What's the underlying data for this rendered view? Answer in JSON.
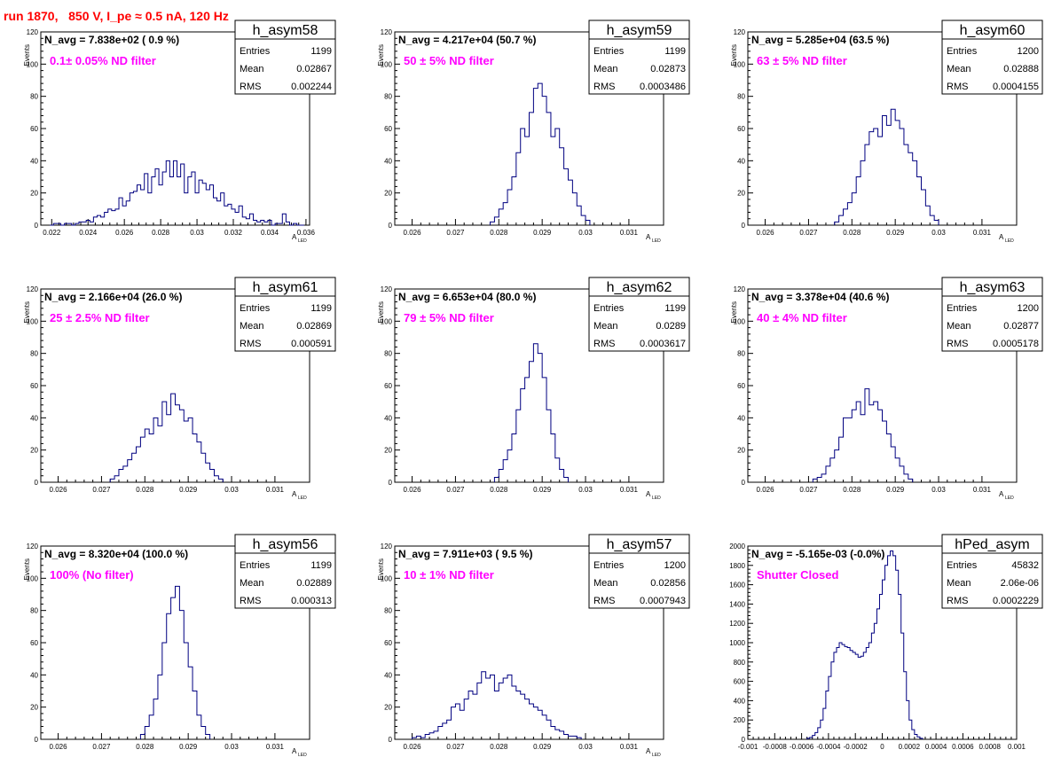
{
  "page": {
    "title": "run 1870,   850 V, I_pe ≈ 0.5 nA, 120 Hz",
    "colors": {
      "title": "#ff0000",
      "filter_text": "#ff00ff",
      "hist_line": "#000080",
      "axis": "#000000"
    }
  },
  "chart_data": [
    {
      "type": "histogram",
      "id": "h_asym58",
      "stats": {
        "name": "h_asym58",
        "rows": [
          [
            "Entries",
            "1199"
          ],
          [
            "Mean",
            "0.02867"
          ],
          [
            "RMS",
            "0.002244"
          ]
        ]
      },
      "navg": "N_avg = 7.838e+02 ( 0.9 %)",
      "filter": "0.1± 0.05% ND filter",
      "ylabel": "Events",
      "xlabel": "A",
      "xlabel_sub": "LED",
      "xlim": [
        0.0214,
        0.0362
      ],
      "ylim": [
        0,
        120
      ],
      "xticks": [
        0.022,
        0.024,
        0.026,
        0.028,
        0.03,
        0.032,
        0.034,
        0.036
      ],
      "xtick_labels": [
        "0.022",
        "0.024",
        "0.026",
        "0.028",
        "0.03",
        "0.032",
        "0.034",
        "0.036"
      ],
      "yticks": [
        0,
        20,
        40,
        60,
        80,
        100,
        120
      ],
      "xmin": 0.0219,
      "binw": 0.0002,
      "values": [
        0,
        1,
        1,
        0,
        1,
        1,
        0,
        1,
        2,
        2,
        3,
        2,
        5,
        6,
        5,
        8,
        10,
        9,
        10,
        17,
        12,
        15,
        20,
        21,
        25,
        22,
        32,
        20,
        30,
        35,
        25,
        33,
        40,
        30,
        40,
        30,
        38,
        20,
        30,
        33,
        20,
        28,
        26,
        22,
        25,
        17,
        15,
        20,
        12,
        13,
        10,
        8,
        12,
        5,
        4,
        7,
        3,
        2,
        3,
        2,
        3,
        0,
        1,
        1,
        7,
        2,
        0,
        1,
        0,
        0
      ]
    },
    {
      "type": "histogram",
      "id": "h_asym59",
      "stats": {
        "name": "h_asym59",
        "rows": [
          [
            "Entries",
            "1199"
          ],
          [
            "Mean",
            "0.02873"
          ],
          [
            "RMS",
            "0.0003486"
          ]
        ]
      },
      "navg": "N_avg = 4.217e+04 (50.7 %)",
      "filter": "50 ± 5% ND filter",
      "ylabel": "Events",
      "xlabel": "A",
      "xlabel_sub": "LED",
      "xlim": [
        0.0256,
        0.0318
      ],
      "ylim": [
        0,
        120
      ],
      "xticks": [
        0.026,
        0.027,
        0.028,
        0.029,
        0.03,
        0.031
      ],
      "xtick_labels": [
        "0.026",
        "0.027",
        "0.028",
        "0.029",
        "0.03",
        "0.031"
      ],
      "yticks": [
        0,
        20,
        40,
        60,
        80,
        100,
        120
      ],
      "xmin": 0.0278,
      "binw": 0.0001,
      "values": [
        2,
        5,
        10,
        14,
        22,
        30,
        45,
        60,
        55,
        70,
        85,
        88,
        80,
        70,
        55,
        60,
        48,
        35,
        28,
        20,
        12,
        6,
        3
      ]
    },
    {
      "type": "histogram",
      "id": "h_asym60",
      "stats": {
        "name": "h_asym60",
        "rows": [
          [
            "Entries",
            "1200"
          ],
          [
            "Mean",
            "0.02888"
          ],
          [
            "RMS",
            "0.0004155"
          ]
        ]
      },
      "navg": "N_avg = 5.285e+04 (63.5 %)",
      "filter": "63 ± 5% ND filter",
      "ylabel": "Events",
      "xlabel": "A",
      "xlabel_sub": "LED",
      "xlim": [
        0.0256,
        0.0318
      ],
      "ylim": [
        0,
        120
      ],
      "xticks": [
        0.026,
        0.027,
        0.028,
        0.029,
        0.03,
        0.031
      ],
      "xtick_labels": [
        "0.026",
        "0.027",
        "0.028",
        "0.029",
        "0.03",
        "0.031"
      ],
      "yticks": [
        0,
        20,
        40,
        60,
        80,
        100,
        120
      ],
      "xmin": 0.0276,
      "binw": 0.0001,
      "values": [
        2,
        6,
        10,
        14,
        20,
        30,
        40,
        50,
        58,
        60,
        55,
        68,
        62,
        72,
        65,
        60,
        50,
        45,
        40,
        30,
        22,
        12,
        6,
        3
      ]
    },
    {
      "type": "histogram",
      "id": "h_asym61",
      "stats": {
        "name": "h_asym61",
        "rows": [
          [
            "Entries",
            "1199"
          ],
          [
            "Mean",
            "0.02869"
          ],
          [
            "RMS",
            "0.000591"
          ]
        ]
      },
      "navg": "N_avg = 2.166e+04 (26.0 %)",
      "filter": "25 ± 2.5% ND filter",
      "ylabel": "Events",
      "xlabel": "A",
      "xlabel_sub": "LED",
      "xlim": [
        0.0256,
        0.0318
      ],
      "ylim": [
        0,
        120
      ],
      "xticks": [
        0.026,
        0.027,
        0.028,
        0.029,
        0.03,
        0.031
      ],
      "xtick_labels": [
        "0.026",
        "0.027",
        "0.028",
        "0.029",
        "0.03",
        "0.031"
      ],
      "yticks": [
        0,
        20,
        40,
        60,
        80,
        100,
        120
      ],
      "xmin": 0.0272,
      "binw": 0.0001,
      "values": [
        2,
        4,
        8,
        10,
        14,
        18,
        22,
        28,
        33,
        30,
        40,
        35,
        50,
        42,
        55,
        48,
        45,
        38,
        40,
        30,
        25,
        18,
        12,
        8,
        4,
        2
      ]
    },
    {
      "type": "histogram",
      "id": "h_asym62",
      "stats": {
        "name": "h_asym62",
        "rows": [
          [
            "Entries",
            "1199"
          ],
          [
            "Mean",
            "0.0289"
          ],
          [
            "RMS",
            "0.0003617"
          ]
        ]
      },
      "navg": "N_avg = 6.653e+04 (80.0 %)",
      "filter": "79 ± 5% ND filter",
      "ylabel": "Events",
      "xlabel": "A",
      "xlabel_sub": "LED",
      "xlim": [
        0.0256,
        0.0318
      ],
      "ylim": [
        0,
        120
      ],
      "xticks": [
        0.026,
        0.027,
        0.028,
        0.029,
        0.03,
        0.031
      ],
      "xtick_labels": [
        "0.026",
        "0.027",
        "0.028",
        "0.029",
        "0.03",
        "0.031"
      ],
      "yticks": [
        0,
        20,
        40,
        60,
        80,
        100,
        120
      ],
      "xmin": 0.0279,
      "binw": 0.0001,
      "values": [
        3,
        8,
        14,
        20,
        30,
        45,
        58,
        65,
        75,
        86,
        80,
        65,
        45,
        30,
        15,
        8,
        3
      ]
    },
    {
      "type": "histogram",
      "id": "h_asym63",
      "stats": {
        "name": "h_asym63",
        "rows": [
          [
            "Entries",
            "1200"
          ],
          [
            "Mean",
            "0.02877"
          ],
          [
            "RMS",
            "0.0005178"
          ]
        ]
      },
      "navg": "N_avg = 3.378e+04 (40.6 %)",
      "filter": "40 ± 4% ND filter",
      "ylabel": "Events",
      "xlabel": "A",
      "xlabel_sub": "LED",
      "xlim": [
        0.0256,
        0.0318
      ],
      "ylim": [
        0,
        120
      ],
      "xticks": [
        0.026,
        0.027,
        0.028,
        0.029,
        0.03,
        0.031
      ],
      "xtick_labels": [
        "0.026",
        "0.027",
        "0.028",
        "0.029",
        "0.03",
        "0.031"
      ],
      "yticks": [
        0,
        20,
        40,
        60,
        80,
        100,
        120
      ],
      "xmin": 0.0271,
      "binw": 0.0001,
      "values": [
        2,
        3,
        5,
        10,
        15,
        20,
        28,
        40,
        40,
        45,
        50,
        42,
        58,
        48,
        50,
        45,
        38,
        30,
        22,
        15,
        10,
        5,
        2
      ]
    },
    {
      "type": "histogram",
      "id": "h_asym56",
      "stats": {
        "name": "h_asym56",
        "rows": [
          [
            "Entries",
            "1199"
          ],
          [
            "Mean",
            "0.02889"
          ],
          [
            "RMS",
            "0.000313"
          ]
        ]
      },
      "navg": "N_avg = 8.320e+04 (100.0 %)",
      "filter": "100% (No filter)",
      "ylabel": "Events",
      "xlabel": "A",
      "xlabel_sub": "LED",
      "xlim": [
        0.0256,
        0.0318
      ],
      "ylim": [
        0,
        120
      ],
      "xticks": [
        0.026,
        0.027,
        0.028,
        0.029,
        0.03,
        0.031
      ],
      "xtick_labels": [
        "0.026",
        "0.027",
        "0.028",
        "0.029",
        "0.03",
        "0.031"
      ],
      "yticks": [
        0,
        20,
        40,
        60,
        80,
        100,
        120
      ],
      "xmin": 0.0279,
      "binw": 0.0001,
      "values": [
        3,
        8,
        15,
        25,
        40,
        60,
        78,
        88,
        95,
        80,
        60,
        45,
        30,
        15,
        8,
        3
      ]
    },
    {
      "type": "histogram",
      "id": "h_asym57",
      "stats": {
        "name": "h_asym57",
        "rows": [
          [
            "Entries",
            "1200"
          ],
          [
            "Mean",
            "0.02856"
          ],
          [
            "RMS",
            "0.0007943"
          ]
        ]
      },
      "navg": "N_avg = 7.911e+03 ( 9.5 %)",
      "filter": "10 ± 1% ND filter",
      "ylabel": "Events",
      "xlabel": "A",
      "xlabel_sub": "LED",
      "xlim": [
        0.0256,
        0.0318
      ],
      "ylim": [
        0,
        120
      ],
      "xticks": [
        0.026,
        0.027,
        0.028,
        0.029,
        0.03,
        0.031
      ],
      "xtick_labels": [
        "0.026",
        "0.027",
        "0.028",
        "0.029",
        "0.03",
        "0.031"
      ],
      "yticks": [
        0,
        20,
        40,
        60,
        80,
        100,
        120
      ],
      "xmin": 0.026,
      "binw": 0.0001,
      "values": [
        1,
        2,
        1,
        3,
        4,
        5,
        8,
        10,
        12,
        20,
        22,
        18,
        25,
        30,
        28,
        35,
        42,
        38,
        40,
        30,
        35,
        38,
        40,
        33,
        30,
        28,
        25,
        22,
        20,
        18,
        15,
        12,
        8,
        6,
        5,
        3,
        2,
        2,
        1
      ]
    },
    {
      "type": "histogram",
      "id": "hPed_asym",
      "stats": {
        "name": "hPed_asym",
        "rows": [
          [
            "Entries",
            "45832"
          ],
          [
            "Mean",
            "2.06e-06"
          ],
          [
            "RMS",
            "0.0002229"
          ]
        ]
      },
      "navg": "N_avg = -5.165e-03 (-0.0%)",
      "filter": "Shutter Closed",
      "ylabel": "",
      "xlabel": "",
      "xlabel_sub": "",
      "xlim": [
        -0.001,
        0.001
      ],
      "ylim": [
        0,
        2000
      ],
      "xticks": [
        -0.001,
        -0.0008,
        -0.0006,
        -0.0004,
        -0.0002,
        0,
        0.0002,
        0.0004,
        0.0006,
        0.0008,
        0.001
      ],
      "xtick_labels": [
        "-0.001",
        "-0.0008",
        "-0.0006",
        "-0.0004",
        "-0.0002",
        "0",
        "0.0002",
        "0.0004",
        "0.0006",
        "0.0008",
        "0.001"
      ],
      "yticks": [
        0,
        200,
        400,
        600,
        800,
        1000,
        1200,
        1400,
        1600,
        1800,
        2000
      ],
      "xmin": -0.00056,
      "binw": 2e-05,
      "values": [
        10,
        20,
        40,
        70,
        120,
        200,
        320,
        500,
        650,
        800,
        900,
        950,
        1000,
        980,
        960,
        950,
        920,
        900,
        880,
        850,
        860,
        900,
        950,
        1000,
        1100,
        1200,
        1350,
        1500,
        1650,
        1800,
        1900,
        1950,
        1900,
        1750,
        1500,
        1100,
        700,
        400,
        200,
        100,
        50,
        25,
        10
      ]
    }
  ]
}
